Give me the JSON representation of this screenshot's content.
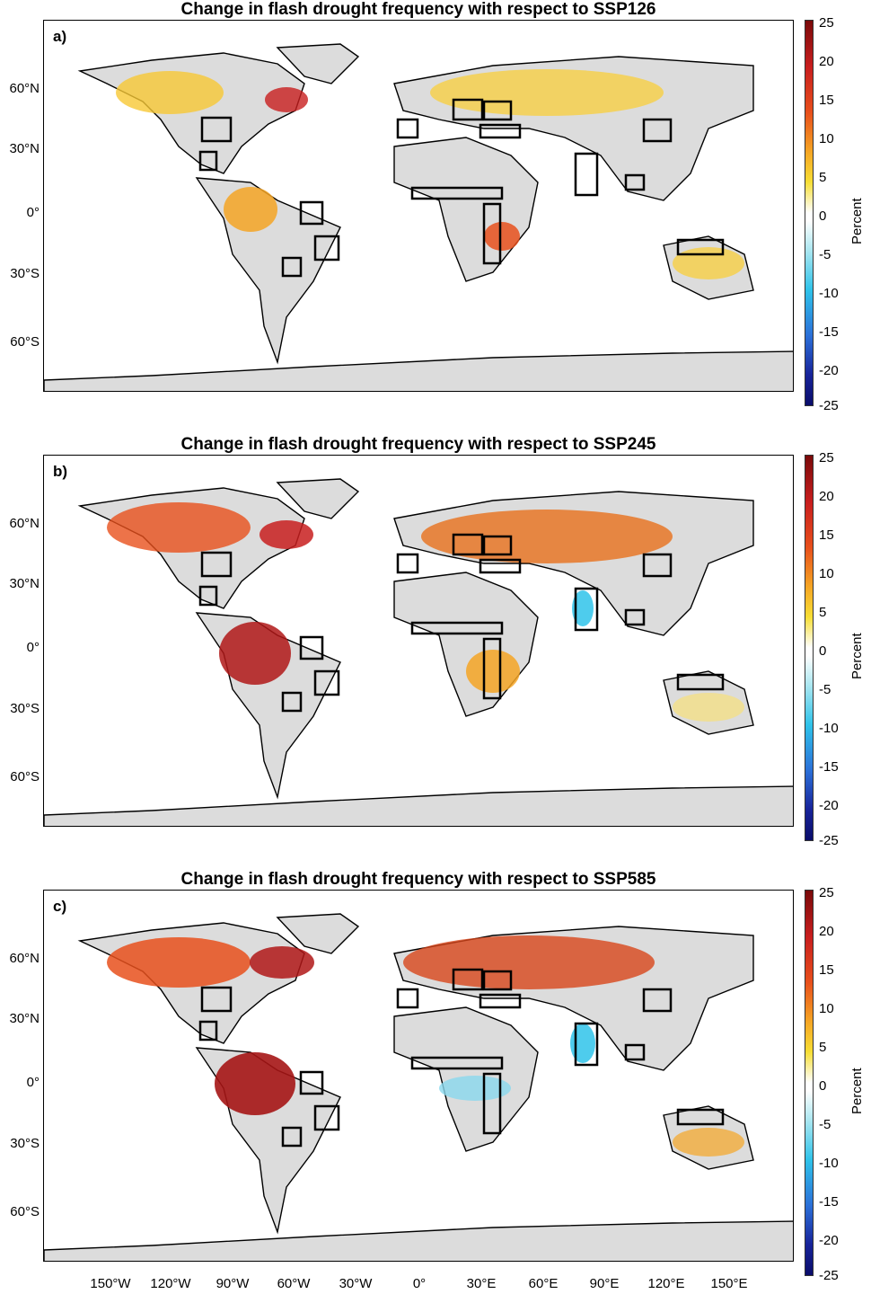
{
  "panels": [
    {
      "tag": "a)",
      "title": "Change in flash drought frequency with respect to SSP126"
    },
    {
      "tag": "b)",
      "title": "Change in flash drought frequency with respect to SSP245"
    },
    {
      "tag": "c)",
      "title": "Change in flash drought frequency with respect to SSP585"
    }
  ],
  "lat_labels": [
    "60°N",
    "30°N",
    "0°",
    "30°S",
    "60°S"
  ],
  "lon_labels": [
    "150°W",
    "120°W",
    "90°W",
    "60°W",
    "30°W",
    "0°",
    "30°E",
    "60°E",
    "90°E",
    "120°E",
    "150°E"
  ],
  "colorbar": {
    "label": "Percent",
    "ticks": [
      "25",
      "20",
      "15",
      "10",
      "5",
      "0",
      "-5",
      "-10",
      "-15",
      "-20",
      "-25"
    ]
  },
  "colors": {
    "land_no_data": "#dcdcdc",
    "warm": "#e8501c",
    "hot": "#c81e1e",
    "mild": "#f7c835",
    "cool": "#2fc3ea"
  }
}
